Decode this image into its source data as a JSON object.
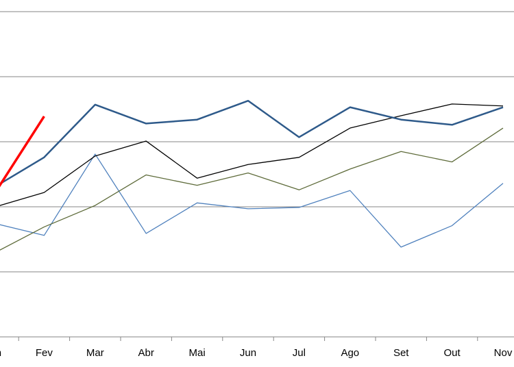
{
  "chart_data": {
    "type": "line",
    "categories": [
      "Jan",
      "Fev",
      "Mar",
      "Abr",
      "Mai",
      "Jun",
      "Jul",
      "Ago",
      "Set",
      "Out",
      "Nov"
    ],
    "series": [
      {
        "color": "#4f81bd",
        "width": 1.3,
        "values": [
          1.75,
          1.56,
          2.81,
          1.59,
          2.06,
          1.97,
          1.99,
          2.25,
          1.38,
          1.71,
          2.36
        ]
      },
      {
        "color": "#5e6b3a",
        "width": 1.3,
        "values": [
          1.28,
          1.69,
          2.02,
          2.49,
          2.33,
          2.52,
          2.26,
          2.58,
          2.85,
          2.69,
          3.21
        ]
      },
      {
        "color": "#000000",
        "width": 1.3,
        "values": [
          1.99,
          2.22,
          2.78,
          3.01,
          2.44,
          2.65,
          2.76,
          3.21,
          3.4,
          3.58,
          3.55
        ]
      },
      {
        "color": "#2e5a8a",
        "width": 2.5,
        "values": [
          2.29,
          2.76,
          3.57,
          3.28,
          3.34,
          3.63,
          3.07,
          3.53,
          3.34,
          3.26,
          3.53
        ]
      },
      {
        "color": "#ff0000",
        "width": 3.5,
        "values": [
          2.17,
          3.39,
          null,
          null,
          null,
          null,
          null,
          null,
          null,
          null,
          null
        ]
      }
    ],
    "ylim": [
      0,
      5
    ],
    "yticks": [
      0,
      1,
      2,
      3,
      4,
      5
    ],
    "grid": true
  }
}
